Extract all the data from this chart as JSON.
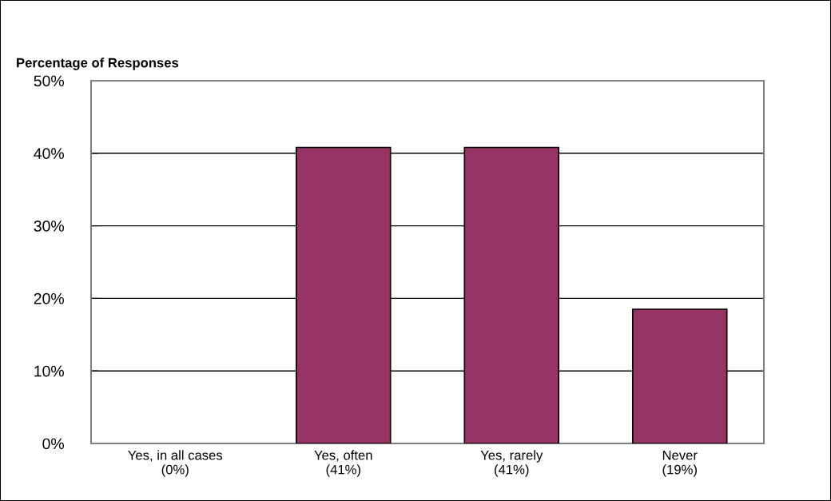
{
  "chart_data": {
    "type": "bar",
    "title": "Percentage of Responses",
    "categories": [
      "Yes, in all cases\n(0%)",
      "Yes, often\n(41%)",
      "Yes, rarely\n(41%)",
      "Never\n(19%)"
    ],
    "values": [
      0,
      40.8,
      40.8,
      18.5
    ],
    "color": "#963464",
    "ylim": [
      0,
      50
    ],
    "yticks": [
      {
        "value": 0,
        "label": "0%"
      },
      {
        "value": 10,
        "label": "10%"
      },
      {
        "value": 20,
        "label": "20%"
      },
      {
        "value": 30,
        "label": "30%"
      },
      {
        "value": 40,
        "label": "40%"
      },
      {
        "value": 50,
        "label": "50%"
      }
    ],
    "grid": "y"
  }
}
